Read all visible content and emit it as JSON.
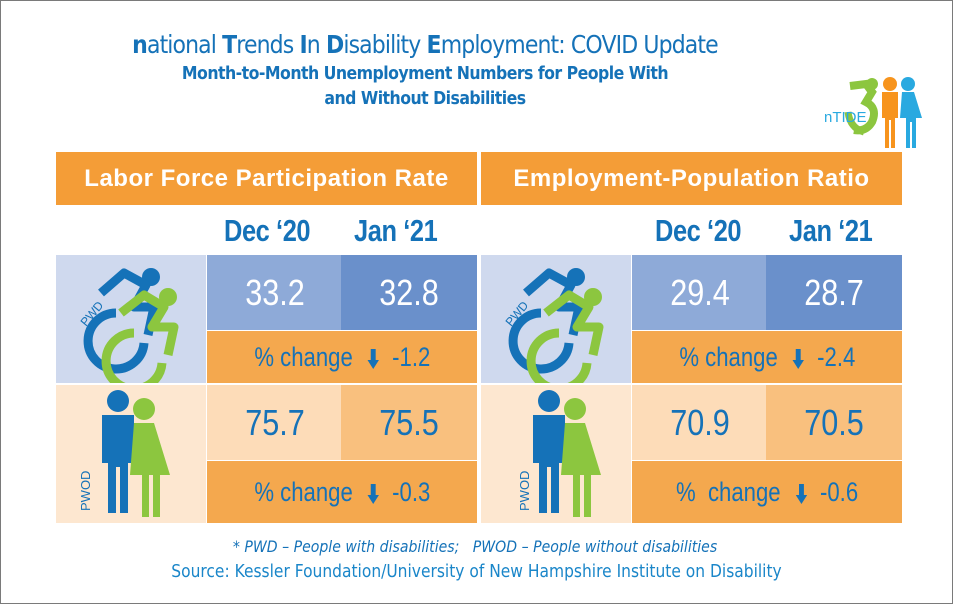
{
  "header": {
    "title_parts": [
      {
        "text": "n",
        "bold": true
      },
      {
        "text": "ational ",
        "bold": false
      },
      {
        "text": "T",
        "bold": true
      },
      {
        "text": "rends ",
        "bold": false
      },
      {
        "text": "I",
        "bold": true
      },
      {
        "text": "n ",
        "bold": false
      },
      {
        "text": "D",
        "bold": true
      },
      {
        "text": "isability ",
        "bold": false
      },
      {
        "text": "E",
        "bold": true
      },
      {
        "text": "mployment: COVID Update",
        "bold": false
      }
    ],
    "subtitle_line1": "Month-to-Month Unemployment Numbers for People With",
    "subtitle_line2": "and Without Disabilities",
    "logo_text": "nTIDE"
  },
  "colors": {
    "brand_blue": "#1572b8",
    "orange_header": "#f49d37",
    "orange_change": "#f4a84e",
    "pwd_light_blue": "#cfd9ee",
    "pwd_dec_blue": "#8eaad8",
    "pwd_jan_blue": "#6a90cb",
    "pwod_light": "#fde7d0",
    "pwod_dec": "#fddcb8",
    "pwod_jan": "#f9c07e",
    "green": "#8cc63f"
  },
  "panels": [
    {
      "title": "Labor Force Participation Rate",
      "months": [
        "Dec ‘20",
        "Jan ‘21"
      ],
      "pwd": {
        "label": "PWD",
        "dec": "33.2",
        "jan": "32.8",
        "change_label": "% change",
        "change_direction": "down",
        "change_value": "-1.2"
      },
      "pwod": {
        "label": "PWOD",
        "dec": "75.7",
        "jan": "75.5",
        "change_label": "% change",
        "change_direction": "down",
        "change_value": "-0.3"
      }
    },
    {
      "title": "Employment-Population Ratio",
      "months": [
        "Dec ‘20",
        "Jan ‘21"
      ],
      "pwd": {
        "label": "PWD",
        "dec": "29.4",
        "jan": "28.7",
        "change_label": "% change",
        "change_direction": "down",
        "change_value": "-2.4"
      },
      "pwod": {
        "label": "PWOD",
        "dec": "70.9",
        "jan": "70.5",
        "change_label": "%  change",
        "change_direction": "down",
        "change_value": "-0.6"
      }
    }
  ],
  "footer": {
    "legend": "* PWD – People with disabilities;   PWOD – People without disabilities",
    "source": "Source: Kessler Foundation/University of New Hampshire Institute on Disability"
  },
  "icons": {
    "pwd": "wheelchair-accessibility-icon",
    "pwod": "man-woman-icon",
    "change": "arrow-down-icon",
    "logo": "ntide-logo"
  }
}
